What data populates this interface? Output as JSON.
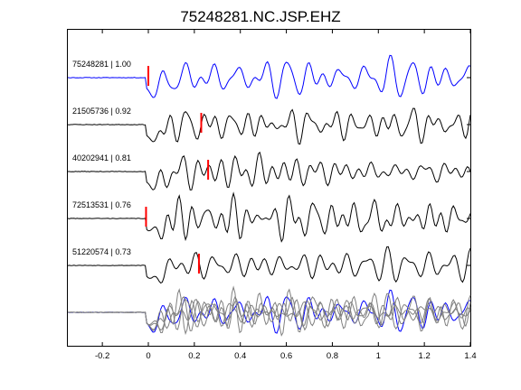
{
  "chart_data": {
    "type": "line",
    "title": "75248281.NC.JSP.EHZ",
    "xlabel": "",
    "ylabel": "",
    "xlim": [
      -0.35,
      1.4
    ],
    "x_ticks": [
      -0.2,
      0,
      0.2,
      0.4,
      0.6,
      0.8,
      1,
      1.2,
      1.4
    ],
    "x_tick_labels": [
      "-0.2",
      "0",
      "0.2",
      "0.4",
      "0.6",
      "0.8",
      "1",
      "1.2",
      "1.4"
    ],
    "grid": false,
    "colors": {
      "reference": "#0000ff",
      "trace": "#000000",
      "pick": "#ff0000",
      "overlay": "#808080"
    },
    "traces": [
      {
        "label": "75248281 | 1.00",
        "pick_x": 0.0,
        "color": "#0000ff",
        "seed": 11
      },
      {
        "label": "21505736 | 0.92",
        "pick_x": 0.23,
        "color": "#000000",
        "seed": 23
      },
      {
        "label": "40202941 | 0.81",
        "pick_x": 0.26,
        "color": "#000000",
        "seed": 37
      },
      {
        "label": "72513531 | 0.76",
        "pick_x": -0.01,
        "color": "#000000",
        "seed": 41
      },
      {
        "label": "51220574 | 0.73",
        "pick_x": 0.22,
        "color": "#000000",
        "seed": 53
      }
    ],
    "stacked_overlay": true
  }
}
